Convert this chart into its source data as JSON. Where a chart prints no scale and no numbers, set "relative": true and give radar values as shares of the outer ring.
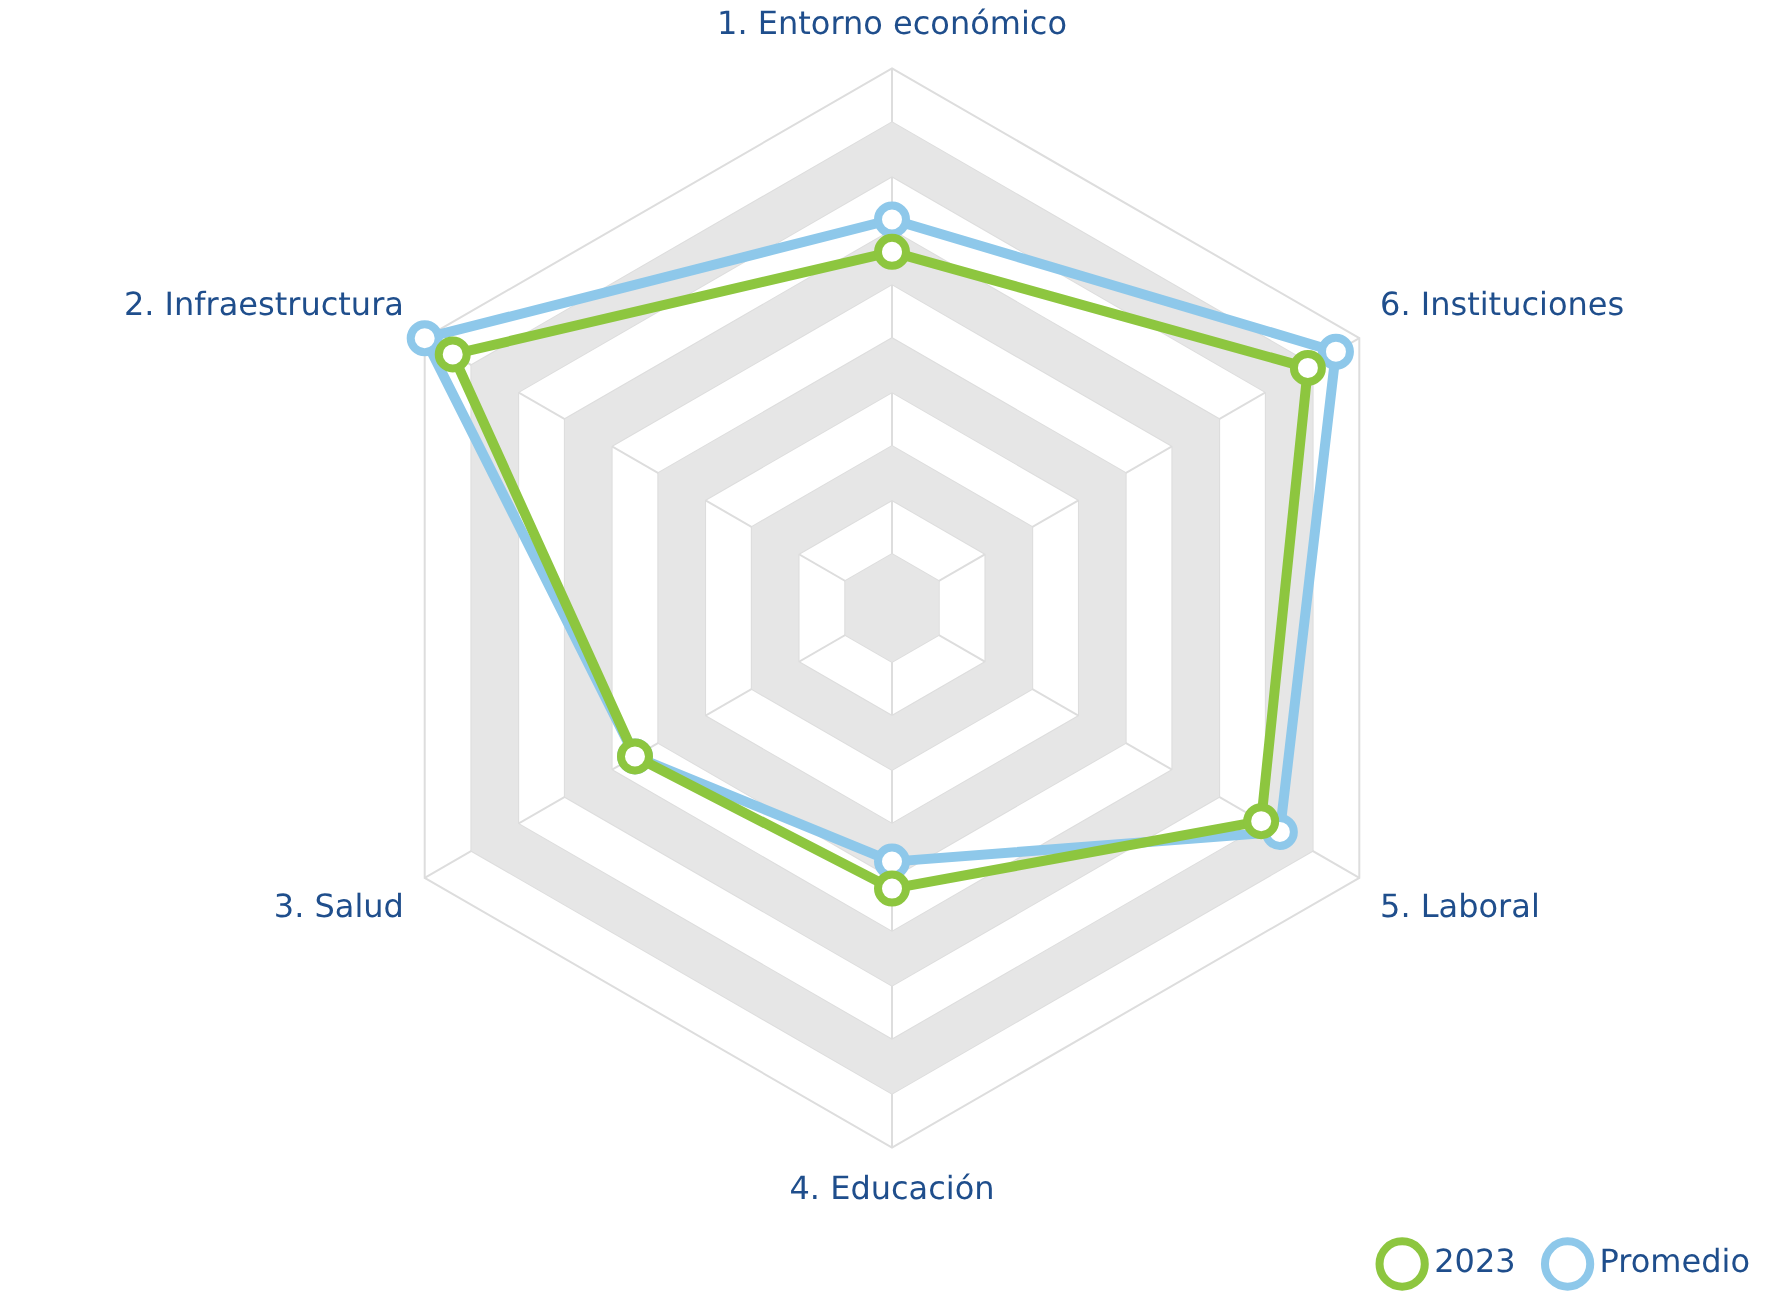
{
  "chart_data": {
    "type": "radar",
    "relative": true,
    "grid": true,
    "legend": "bottom right",
    "marker": "circle",
    "categories": [
      "1. Entorno económico",
      "6. Instituciones",
      "5. Laboral",
      "4. Educación",
      "3. Salud",
      "2. Infraestructura"
    ],
    "series": [
      {
        "name": "2023",
        "color": "#8dc63f",
        "values": [
          0.66,
          0.89,
          0.79,
          0.52,
          0.55,
          0.94
        ]
      },
      {
        "name": "Promedio",
        "color": "#8ec8ea",
        "values": [
          0.72,
          0.95,
          0.83,
          0.47,
          0.55,
          1.0
        ]
      }
    ]
  }
}
